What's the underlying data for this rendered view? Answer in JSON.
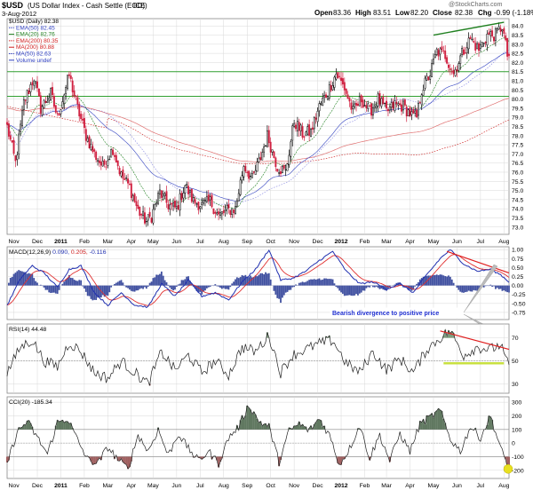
{
  "header": {
    "symbol": "$USD",
    "name": "(US Dollar Index - Cash Settle (EOD))",
    "exchange": "ICE",
    "date": "3-Aug-2012",
    "watermark": "@StockCharts.com",
    "open_label": "Open",
    "open": "83.36",
    "high_label": "High",
    "high": "83.51",
    "low_label": "Low",
    "low": "82.20",
    "close_label": "Close",
    "close": "82.38",
    "chg_label": "Chg",
    "chg": "-0.99 (-1.18%)"
  },
  "chart_data": [
    {
      "type": "candlestick",
      "panel": "price",
      "legend": [
        {
          "text": "$USD (Daily) 82.38",
          "color": "#000000"
        },
        {
          "text": "EMA(50) 82.45",
          "color": "#3040c0"
        },
        {
          "text": "EMA(20) 82.76",
          "color": "#208020"
        },
        {
          "text": "EMA(200) 80.35",
          "color": "#d02020"
        },
        {
          "text": "MA(200) 80.88",
          "color": "#d02020"
        },
        {
          "text": "MA(50) 82.63",
          "color": "#3040c0"
        },
        {
          "text": "Volume undef",
          "color": "#3040c0"
        }
      ],
      "y_ticks": [
        73.0,
        73.5,
        74.0,
        74.5,
        75.0,
        75.5,
        76.0,
        76.5,
        77.0,
        77.5,
        78.0,
        78.5,
        79.0,
        79.5,
        80.0,
        80.5,
        81.0,
        81.5,
        82.0,
        82.5,
        83.0,
        83.5,
        84.0
      ],
      "ylim": [
        72.6,
        84.4
      ],
      "x_labels": [
        "Nov",
        "Dec",
        "2011",
        "Feb",
        "Mar",
        "Apr",
        "May",
        "Jun",
        "Jul",
        "Aug",
        "Sep",
        "Oct",
        "Nov",
        "Dec",
        "2012",
        "Feb",
        "Mar",
        "Apr",
        "May",
        "Jun",
        "Jul",
        "Aug"
      ],
      "close_path": [
        [
          0,
          78.5
        ],
        [
          5,
          76.5
        ],
        [
          10,
          79.8
        ],
        [
          16,
          81.2
        ],
        [
          20,
          79.5
        ],
        [
          26,
          80.3
        ],
        [
          30,
          79.0
        ],
        [
          37,
          81.3
        ],
        [
          42,
          79.5
        ],
        [
          47,
          78.0
        ],
        [
          52,
          77.0
        ],
        [
          57,
          76.3
        ],
        [
          63,
          77.3
        ],
        [
          68,
          75.8
        ],
        [
          73,
          75.2
        ],
        [
          78,
          73.9
        ],
        [
          83,
          73.3
        ],
        [
          86,
          73.6
        ],
        [
          91,
          74.9
        ],
        [
          96,
          74.2
        ],
        [
          101,
          74.0
        ],
        [
          106,
          75.3
        ],
        [
          111,
          74.4
        ],
        [
          116,
          74.2
        ],
        [
          121,
          74.4
        ],
        [
          126,
          73.6
        ],
        [
          131,
          73.9
        ],
        [
          136,
          74.0
        ],
        [
          141,
          76.4
        ],
        [
          146,
          75.6
        ],
        [
          151,
          76.8
        ],
        [
          155,
          78.0
        ],
        [
          161,
          76.3
        ],
        [
          166,
          76.0
        ],
        [
          171,
          78.8
        ],
        [
          176,
          78.1
        ],
        [
          181,
          78.2
        ],
        [
          186,
          79.6
        ],
        [
          191,
          80.4
        ],
        [
          196,
          81.4
        ],
        [
          201,
          80.6
        ],
        [
          206,
          79.3
        ],
        [
          211,
          80.0
        ],
        [
          216,
          79.3
        ],
        [
          221,
          80.0
        ],
        [
          226,
          79.3
        ],
        [
          231,
          79.7
        ],
        [
          236,
          79.6
        ],
        [
          241,
          79.1
        ],
        [
          244,
          79.0
        ],
        [
          247,
          80.5
        ],
        [
          252,
          81.4
        ],
        [
          256,
          82.6
        ],
        [
          261,
          82.4
        ],
        [
          266,
          81.4
        ],
        [
          271,
          82.5
        ],
        [
          276,
          83.3
        ],
        [
          281,
          82.7
        ],
        [
          286,
          83.5
        ],
        [
          291,
          83.5
        ],
        [
          295,
          84.0
        ],
        [
          298,
          82.4
        ]
      ],
      "n_days": 300,
      "horizontal_lines": [
        81.5,
        80.15
      ],
      "trend_line": {
        "from": [
          254,
          83.5
        ],
        "to": [
          296,
          84.2
        ],
        "color": "#208020"
      },
      "annotations": []
    },
    {
      "type": "line",
      "panel": "macd",
      "title": "MACD(12,26,9) 0.090, 0.205, -0.116",
      "legend": [
        {
          "text": "MACD(12,26,9)",
          "color": "#000000"
        },
        {
          "text": " 0.090,",
          "color": "#2030b0"
        },
        {
          "text": " 0.205,",
          "color": "#d02020"
        },
        {
          "text": " -0.116",
          "color": "#2030b0"
        }
      ],
      "y_ticks": [
        -0.75,
        -0.5,
        -0.25,
        0.0,
        0.25,
        0.5,
        0.75,
        1.0
      ],
      "ylim": [
        -0.95,
        1.08
      ],
      "macd_path": [
        [
          0,
          -0.55
        ],
        [
          8,
          0.2
        ],
        [
          15,
          0.55
        ],
        [
          22,
          0.35
        ],
        [
          30,
          -0.05
        ],
        [
          37,
          0.45
        ],
        [
          44,
          0.55
        ],
        [
          52,
          -0.2
        ],
        [
          60,
          -0.55
        ],
        [
          68,
          -0.2
        ],
        [
          76,
          -0.55
        ],
        [
          84,
          -0.6
        ],
        [
          92,
          0.05
        ],
        [
          100,
          -0.3
        ],
        [
          108,
          0.15
        ],
        [
          116,
          -0.3
        ],
        [
          124,
          -0.2
        ],
        [
          132,
          -0.4
        ],
        [
          140,
          0.1
        ],
        [
          148,
          0.45
        ],
        [
          156,
          1.0
        ],
        [
          163,
          0.15
        ],
        [
          170,
          0.2
        ],
        [
          178,
          0.4
        ],
        [
          186,
          0.7
        ],
        [
          194,
          0.95
        ],
        [
          202,
          0.4
        ],
        [
          210,
          0.05
        ],
        [
          218,
          0.1
        ],
        [
          226,
          -0.1
        ],
        [
          234,
          0.05
        ],
        [
          242,
          -0.2
        ],
        [
          250,
          0.3
        ],
        [
          258,
          0.75
        ],
        [
          264,
          1.0
        ],
        [
          272,
          0.6
        ],
        [
          280,
          0.4
        ],
        [
          288,
          0.45
        ],
        [
          294,
          0.3
        ],
        [
          299,
          0.1
        ]
      ],
      "annotations": [
        {
          "text": "Bearish divergence to positive price",
          "color": "#2030d0"
        }
      ],
      "divergence_line": {
        "from": [
          262,
          0.95
        ],
        "to": [
          299,
          0.35
        ],
        "color": "#e02020"
      }
    },
    {
      "type": "line",
      "panel": "rsi",
      "title": "RSI(14) 44.48",
      "y_ticks": [
        30,
        50,
        70
      ],
      "ylim": [
        22,
        82
      ],
      "rsi_path": [
        [
          0,
          40
        ],
        [
          8,
          62
        ],
        [
          15,
          68
        ],
        [
          22,
          50
        ],
        [
          30,
          45
        ],
        [
          37,
          66
        ],
        [
          44,
          58
        ],
        [
          52,
          40
        ],
        [
          60,
          35
        ],
        [
          68,
          50
        ],
        [
          76,
          40
        ],
        [
          84,
          30
        ],
        [
          92,
          58
        ],
        [
          100,
          42
        ],
        [
          108,
          55
        ],
        [
          116,
          40
        ],
        [
          124,
          50
        ],
        [
          132,
          38
        ],
        [
          140,
          62
        ],
        [
          148,
          58
        ],
        [
          156,
          72
        ],
        [
          163,
          40
        ],
        [
          170,
          55
        ],
        [
          178,
          60
        ],
        [
          186,
          65
        ],
        [
          194,
          68
        ],
        [
          202,
          48
        ],
        [
          210,
          40
        ],
        [
          218,
          58
        ],
        [
          226,
          42
        ],
        [
          234,
          52
        ],
        [
          242,
          40
        ],
        [
          250,
          60
        ],
        [
          258,
          70
        ],
        [
          264,
          76
        ],
        [
          272,
          55
        ],
        [
          280,
          62
        ],
        [
          288,
          60
        ],
        [
          294,
          64
        ],
        [
          299,
          44
        ]
      ],
      "divergence_line": {
        "from": [
          258,
          76
        ],
        "to": [
          299,
          60
        ],
        "color": "#e02020"
      },
      "support_line": {
        "from": [
          260,
          48
        ],
        "to": [
          296,
          48
        ],
        "color": "#c8e040"
      }
    },
    {
      "type": "line",
      "panel": "cci",
      "title": "CCI(20) -185.34",
      "y_ticks": [
        -200,
        -100,
        0,
        100,
        200,
        300
      ],
      "ylim": [
        -260,
        340
      ],
      "cci_path": [
        [
          0,
          -150
        ],
        [
          6,
          80
        ],
        [
          12,
          160
        ],
        [
          18,
          40
        ],
        [
          24,
          -80
        ],
        [
          30,
          150
        ],
        [
          36,
          180
        ],
        [
          42,
          20
        ],
        [
          48,
          -120
        ],
        [
          54,
          -150
        ],
        [
          60,
          -30
        ],
        [
          66,
          -120
        ],
        [
          72,
          -190
        ],
        [
          78,
          60
        ],
        [
          84,
          -60
        ],
        [
          90,
          100
        ],
        [
          96,
          -90
        ],
        [
          102,
          70
        ],
        [
          108,
          -40
        ],
        [
          114,
          -130
        ],
        [
          120,
          -60
        ],
        [
          126,
          -150
        ],
        [
          132,
          40
        ],
        [
          138,
          120
        ],
        [
          144,
          280
        ],
        [
          150,
          160
        ],
        [
          156,
          120
        ],
        [
          162,
          -140
        ],
        [
          168,
          90
        ],
        [
          174,
          140
        ],
        [
          180,
          90
        ],
        [
          186,
          180
        ],
        [
          192,
          60
        ],
        [
          198,
          -160
        ],
        [
          204,
          -40
        ],
        [
          210,
          130
        ],
        [
          216,
          -110
        ],
        [
          222,
          60
        ],
        [
          228,
          -130
        ],
        [
          234,
          70
        ],
        [
          240,
          -60
        ],
        [
          246,
          140
        ],
        [
          252,
          190
        ],
        [
          258,
          240
        ],
        [
          264,
          30
        ],
        [
          270,
          -60
        ],
        [
          276,
          120
        ],
        [
          282,
          40
        ],
        [
          288,
          200
        ],
        [
          294,
          -40
        ],
        [
          299,
          -185
        ]
      ],
      "highlight_last": true
    }
  ],
  "colors": {
    "up_candle": "#000000",
    "down_candle": "#d02040",
    "grid": "#d8d8d8",
    "panel_bg": "#ffffff",
    "hline": "#30a030",
    "macd_line": "#2030b0",
    "signal_line": "#e03030",
    "histogram": "#4050a0",
    "rsi_line": "#202020",
    "cci_fill_pos": "#607860",
    "cci_fill_neg": "#a06060"
  }
}
